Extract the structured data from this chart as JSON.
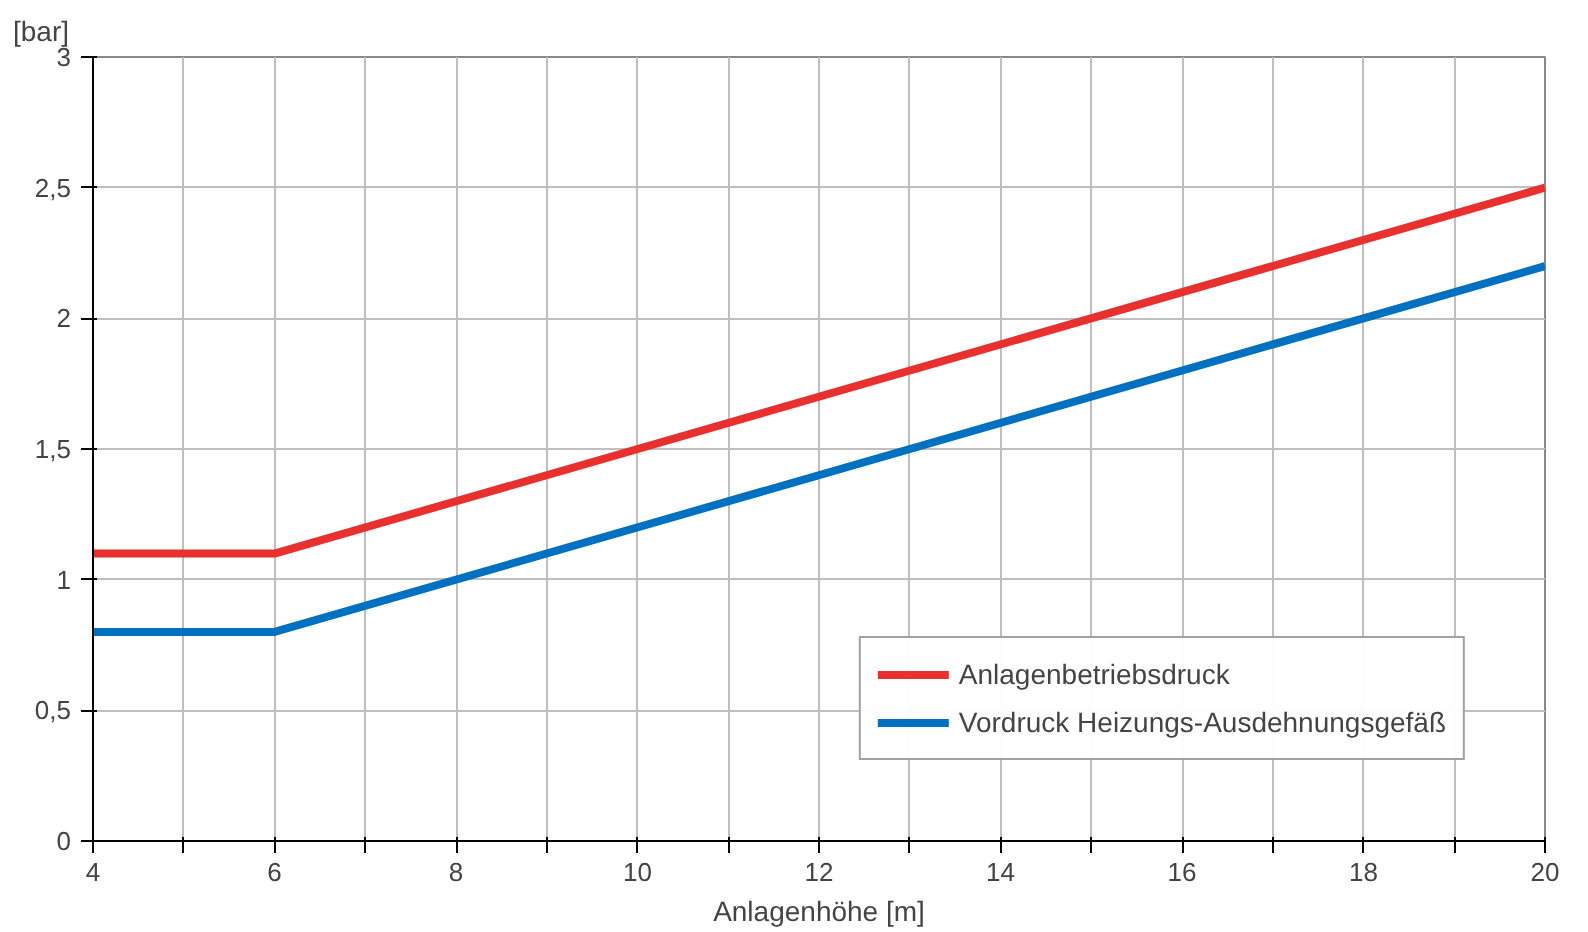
{
  "chart_data": {
    "type": "line",
    "xlabel": "Anlagenhöhe [m]",
    "ylabel": "[bar]",
    "x": [
      4,
      6,
      20
    ],
    "series": [
      {
        "name": "Anlagenbetriebsdruck",
        "color": "#e8312f",
        "values": [
          1.1,
          1.1,
          2.5
        ]
      },
      {
        "name": "Vordruck Heizungs-Ausdehnungsgefäß",
        "color": "#0070c0",
        "values": [
          0.8,
          0.8,
          2.2
        ]
      }
    ],
    "xlim": [
      4,
      20
    ],
    "xticks": [
      4,
      {
        "value": 5,
        "label": null
      },
      6,
      {
        "value": 7,
        "label": null
      },
      8,
      {
        "value": 9,
        "label": null
      },
      10,
      {
        "value": 11,
        "label": null
      },
      12,
      {
        "value": 13,
        "label": null
      },
      14,
      {
        "value": 15,
        "label": null
      },
      16,
      {
        "value": 17,
        "label": null
      },
      18,
      {
        "value": 19,
        "label": null
      },
      20
    ],
    "ylim": [
      0,
      3
    ],
    "yticks": [
      0,
      {
        "value": 0.5,
        "label": "0,5"
      },
      1,
      {
        "value": 1.5,
        "label": "1,5"
      },
      2,
      {
        "value": 2.5,
        "label": "2,5"
      },
      3
    ],
    "grid": true,
    "legend": "bottom right",
    "marker": "none",
    "line_style": "solid"
  }
}
